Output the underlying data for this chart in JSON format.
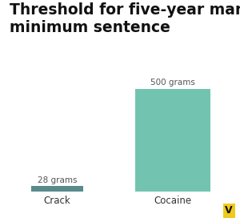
{
  "categories": [
    "Crack",
    "Cocaine"
  ],
  "values": [
    28,
    500
  ],
  "bar_colors": [
    "#5a8a8a",
    "#72c4b0"
  ],
  "bar_labels": [
    "28 grams",
    "500 grams"
  ],
  "title_line1": "Threshold for five-year mandatory",
  "title_line2": "minimum sentence",
  "ylim": [
    0,
    550
  ],
  "title_fontsize": 13.5,
  "label_fontsize": 7.5,
  "tick_fontsize": 8.5,
  "background_color": "#ffffff",
  "vox_logo_color": "#f0c91e",
  "vox_logo_text": "V"
}
